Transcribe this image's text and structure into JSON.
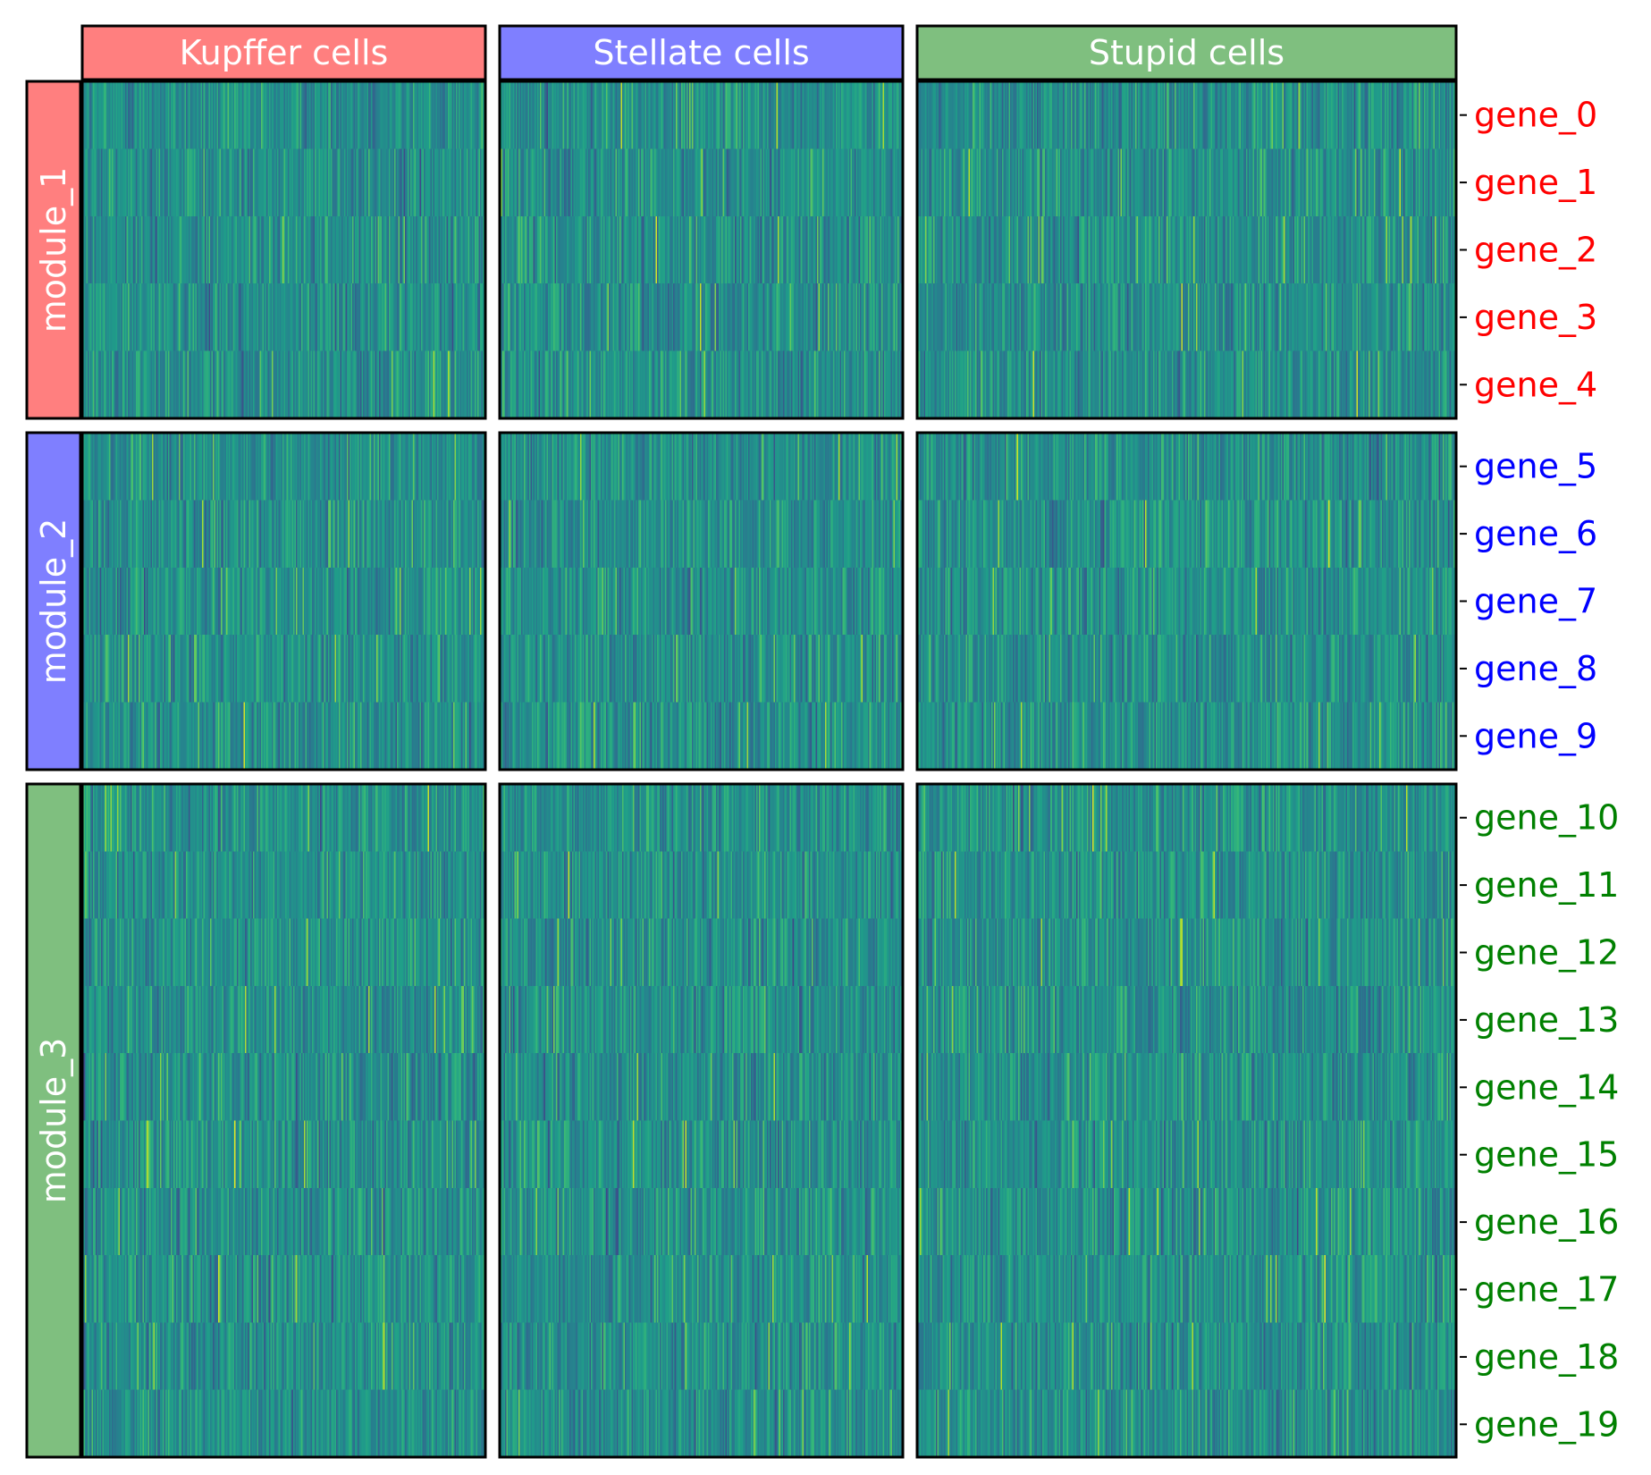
{
  "chart_data": {
    "type": "heatmap",
    "colormap": "viridis",
    "column_groups": [
      {
        "label": "Kupffer cells",
        "color": "#ff7f7f",
        "n_cells": 300
      },
      {
        "label": "Stellate cells",
        "color": "#7f7fff",
        "n_cells": 300
      },
      {
        "label": "Stupid cells",
        "color": "#7fbf7f",
        "n_cells": 400
      }
    ],
    "row_groups": [
      {
        "label": "module_1",
        "color": "#ff7f7f",
        "label_color": "#ff0000",
        "genes": [
          "gene_0",
          "gene_1",
          "gene_2",
          "gene_3",
          "gene_4"
        ]
      },
      {
        "label": "module_2",
        "color": "#7f7fff",
        "label_color": "#0000ff",
        "genes": [
          "gene_5",
          "gene_6",
          "gene_7",
          "gene_8",
          "gene_9"
        ]
      },
      {
        "label": "module_3",
        "color": "#7fbf7f",
        "label_color": "#008000",
        "genes": [
          "gene_10",
          "gene_11",
          "gene_12",
          "gene_13",
          "gene_14",
          "gene_15",
          "gene_16",
          "gene_17",
          "gene_18",
          "gene_19"
        ]
      }
    ],
    "value_range": [
      0,
      1
    ],
    "typical_value": 0.5
  }
}
